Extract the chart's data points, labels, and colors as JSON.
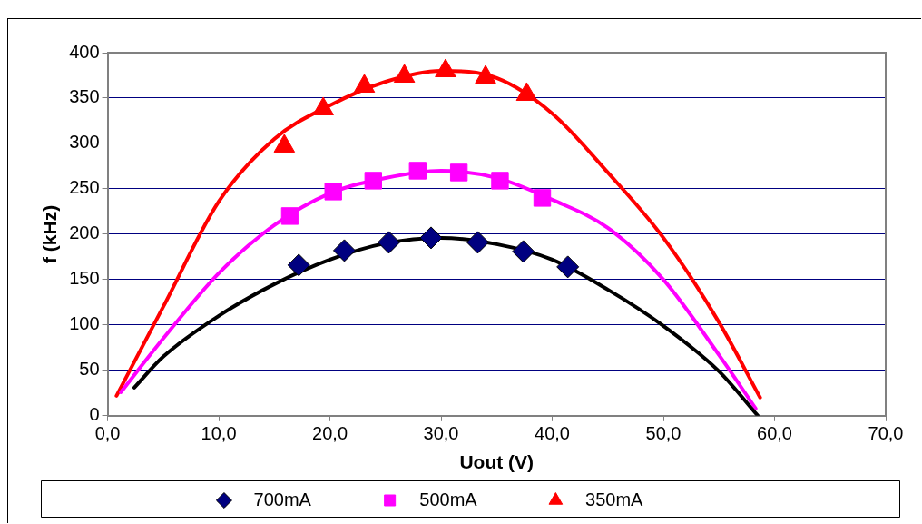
{
  "chart_data": {
    "type": "scatter",
    "xlabel": "Uout (V)",
    "ylabel": "f (kHz)",
    "xlim": [
      0,
      70
    ],
    "xticks": [
      {
        "value": 0,
        "label": "0,0"
      },
      {
        "value": 10,
        "label": "10,0"
      },
      {
        "value": 20,
        "label": "20,0"
      },
      {
        "value": 30,
        "label": "30,0"
      },
      {
        "value": 40,
        "label": "40,0"
      },
      {
        "value": 50,
        "label": "50,0"
      },
      {
        "value": 60,
        "label": "60,0"
      },
      {
        "value": 70,
        "label": "70,0"
      }
    ],
    "ylim": [
      0,
      400
    ],
    "yticks": [
      0,
      50,
      100,
      150,
      200,
      250,
      300,
      350,
      400
    ],
    "grid": "y",
    "legend": "bottom",
    "series": [
      {
        "name": "700mA",
        "type": "scatter",
        "marker": "diamond",
        "color": "#000080",
        "x": [
          17.2,
          21.3,
          25.3,
          29.1,
          33.3,
          37.4,
          41.4
        ],
        "values": [
          166,
          182,
          191,
          196,
          191,
          181,
          164
        ]
      },
      {
        "name": "500mA",
        "type": "scatter",
        "marker": "square",
        "color": "#ff00ff",
        "x": [
          16.4,
          20.3,
          23.9,
          27.9,
          31.6,
          35.3,
          39.1
        ],
        "values": [
          220,
          247,
          259,
          270,
          268,
          259,
          240
        ]
      },
      {
        "name": "350mA",
        "type": "scatter",
        "marker": "triangle",
        "color": "#ff0000",
        "x": [
          15.9,
          19.4,
          23.1,
          26.7,
          30.4,
          34.0,
          37.7
        ],
        "values": [
          297,
          338,
          363,
          374,
          380,
          373,
          354
        ]
      },
      {
        "type": "line",
        "marker": "none",
        "color": "#000000",
        "x": [
          2.4,
          5,
          10,
          15,
          20,
          25,
          30,
          35,
          40,
          45,
          50,
          55,
          58.5
        ],
        "values": [
          31,
          65,
          110,
          145,
          172,
          190,
          196,
          189,
          172,
          139,
          99,
          49,
          0
        ]
      },
      {
        "type": "line",
        "marker": "none",
        "color": "#ff00ff",
        "x": [
          1.2,
          5,
          10,
          15,
          20,
          25,
          30,
          35,
          40,
          45,
          50,
          55,
          58.3
        ],
        "values": [
          26,
          85,
          157,
          210,
          245,
          262,
          270,
          262,
          238,
          207,
          150,
          67,
          8
        ]
      },
      {
        "type": "line",
        "marker": "none",
        "color": "#ff0000",
        "x": [
          0.8,
          5,
          10,
          15,
          20,
          25,
          30,
          35,
          40,
          45,
          50,
          55,
          58.7
        ],
        "values": [
          22,
          120,
          236,
          305,
          342,
          368,
          380,
          372,
          333,
          268,
          196,
          103,
          20
        ]
      }
    ]
  }
}
